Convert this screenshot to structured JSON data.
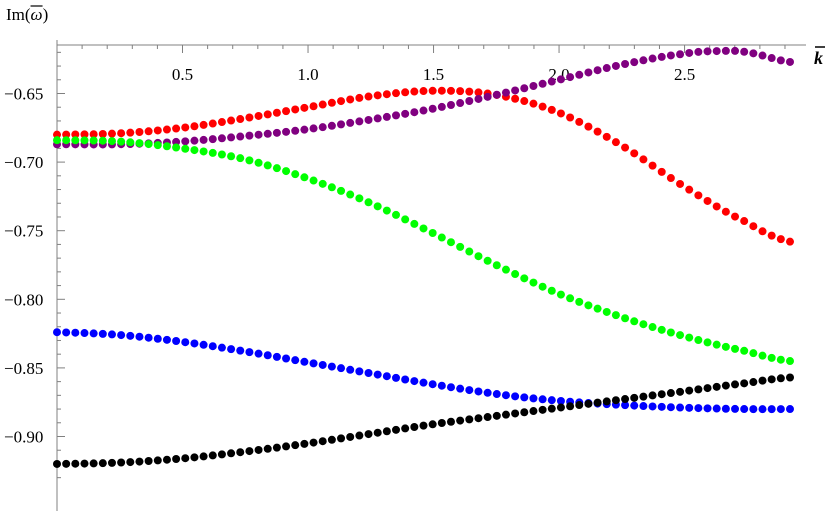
{
  "chart_data": {
    "type": "scatter",
    "ylabel_prefix": "Im(",
    "ylabel_symbol": "ω",
    "ylabel_suffix": ")",
    "xlabel": "k",
    "xlim": [
      0,
      2.95
    ],
    "ylim": [
      -0.925,
      -0.607
    ],
    "x_ticks": [
      "0.5",
      "1.0",
      "1.5",
      "2.0",
      "2.5"
    ],
    "y_ticks": [
      "-0.65",
      "-0.70",
      "-0.75",
      "-0.80",
      "-0.85",
      "-0.90"
    ],
    "x_range": [
      0.0,
      2.92
    ],
    "points_per_series": 81,
    "series": [
      {
        "color": "#ff0000",
        "x": [
          0.0,
          0.25,
          0.5,
          0.75,
          1.0,
          1.25,
          1.5,
          1.75,
          2.0,
          2.25,
          2.5,
          2.75,
          2.92
        ],
        "y": [
          -0.68,
          -0.679,
          -0.675,
          -0.668,
          -0.66,
          -0.652,
          -0.648,
          -0.651,
          -0.664,
          -0.688,
          -0.718,
          -0.744,
          -0.758
        ]
      },
      {
        "color": "#800080",
        "x": [
          0.0,
          0.25,
          0.5,
          0.75,
          1.0,
          1.25,
          1.5,
          1.75,
          2.0,
          2.25,
          2.5,
          2.65,
          2.75,
          2.92
        ],
        "y": [
          -0.687,
          -0.687,
          -0.685,
          -0.681,
          -0.676,
          -0.669,
          -0.661,
          -0.651,
          -0.64,
          -0.629,
          -0.621,
          -0.619,
          -0.62,
          -0.627
        ]
      },
      {
        "color": "#00ff00",
        "x": [
          0.0,
          0.25,
          0.5,
          0.75,
          1.0,
          1.25,
          1.5,
          1.75,
          2.0,
          2.25,
          2.5,
          2.75,
          2.92
        ],
        "y": [
          -0.684,
          -0.685,
          -0.69,
          -0.698,
          -0.712,
          -0.73,
          -0.752,
          -0.775,
          -0.796,
          -0.813,
          -0.827,
          -0.838,
          -0.845
        ]
      },
      {
        "color": "#0000ff",
        "x": [
          0.0,
          0.25,
          0.5,
          0.75,
          1.0,
          1.25,
          1.5,
          1.75,
          2.0,
          2.25,
          2.5,
          2.75,
          2.92
        ],
        "y": [
          -0.824,
          -0.826,
          -0.831,
          -0.838,
          -0.846,
          -0.854,
          -0.862,
          -0.869,
          -0.874,
          -0.877,
          -0.879,
          -0.88,
          -0.88
        ]
      },
      {
        "color": "#000000",
        "x": [
          0.0,
          0.25,
          0.5,
          0.75,
          1.0,
          1.25,
          1.5,
          1.75,
          2.0,
          2.25,
          2.5,
          2.75,
          2.92
        ],
        "y": [
          -0.92,
          -0.919,
          -0.916,
          -0.911,
          -0.905,
          -0.898,
          -0.891,
          -0.885,
          -0.879,
          -0.873,
          -0.867,
          -0.861,
          -0.857
        ]
      }
    ]
  }
}
